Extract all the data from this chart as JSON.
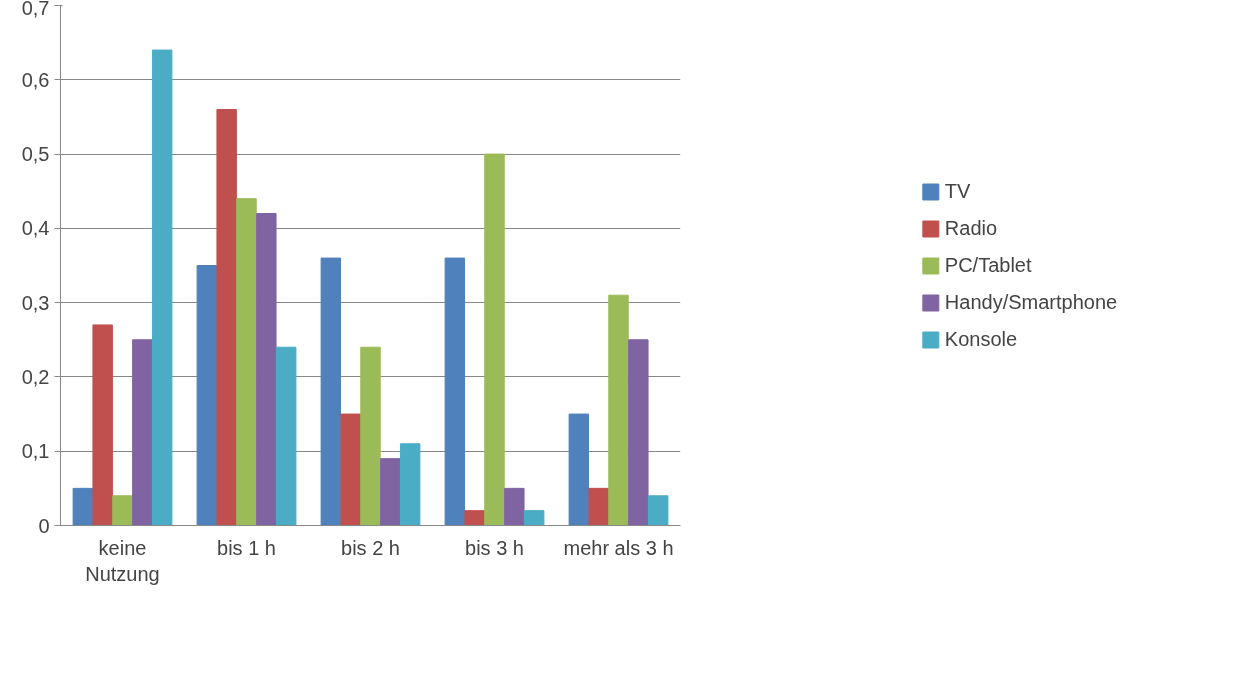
{
  "chart_data": {
    "type": "bar",
    "categories": [
      "keine Nutzung",
      "bis 1 h",
      "bis 2 h",
      "bis 3 h",
      "mehr als 3 h"
    ],
    "series": [
      {
        "name": "TV",
        "color": "#4f81bd",
        "values": [
          0.05,
          0.35,
          0.36,
          0.36,
          0.15
        ]
      },
      {
        "name": "Radio",
        "color": "#c0504d",
        "values": [
          0.27,
          0.56,
          0.15,
          0.02,
          0.05
        ]
      },
      {
        "name": "PC/Tablet",
        "color": "#9bbb59",
        "values": [
          0.04,
          0.44,
          0.24,
          0.5,
          0.31
        ]
      },
      {
        "name": "Handy/Smartphone",
        "color": "#8064a2",
        "values": [
          0.25,
          0.42,
          0.09,
          0.05,
          0.25
        ]
      },
      {
        "name": "Konsole",
        "color": "#4bacc6",
        "values": [
          0.64,
          0.24,
          0.11,
          0.02,
          0.04
        ]
      }
    ],
    "ylim": [
      0,
      0.7
    ],
    "yticks": [
      0,
      {
        "value": 0.1,
        "label": "0,1"
      },
      {
        "value": 0.2,
        "label": "0,2"
      },
      {
        "value": 0.3,
        "label": "0,3"
      },
      {
        "value": 0.4,
        "label": "0,4"
      },
      {
        "value": 0.5,
        "label": "0,5"
      },
      {
        "value": 0.6,
        "label": "0,6"
      },
      {
        "value": 0.7,
        "label": "0,7"
      }
    ],
    "grid": "y",
    "legend": "right"
  }
}
